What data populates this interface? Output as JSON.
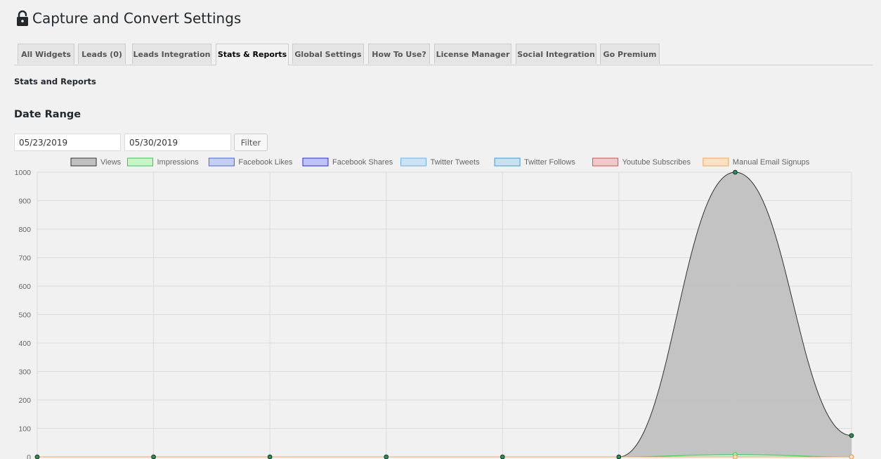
{
  "page": {
    "title": "Capture and Convert Settings",
    "title_icon": "lock-open-icon"
  },
  "tabs": [
    {
      "label": "All Widgets",
      "active": false
    },
    {
      "label": "Leads (0)",
      "active": false
    },
    {
      "label": "Leads Integration",
      "active": false
    },
    {
      "label": "Stats & Reports",
      "active": true
    },
    {
      "label": "Global Settings",
      "active": false
    },
    {
      "label": "How To Use?",
      "active": false
    },
    {
      "label": "License Manager",
      "active": false
    },
    {
      "label": "Social Integration",
      "active": false
    },
    {
      "label": "Go Premium",
      "active": false
    }
  ],
  "section": {
    "subtitle": "Stats and Reports",
    "date_range_title": "Date Range"
  },
  "filters": {
    "start_date": "05/23/2019",
    "end_date": "05/30/2019",
    "filter_label": "Filter"
  },
  "chart_data": {
    "type": "area",
    "x": [
      "",
      "",
      "",
      "",
      "",
      "",
      "",
      ""
    ],
    "ylim": [
      0,
      1000
    ],
    "yticks": [
      0,
      100,
      200,
      300,
      400,
      500,
      600,
      700,
      800,
      900,
      1000
    ],
    "grid": true,
    "legend_position": "top",
    "series": [
      {
        "name": "Views",
        "values": [
          0,
          0,
          0,
          0,
          0,
          0,
          1000,
          75
        ],
        "fill": "#c0c0c0",
        "stroke": "#333333"
      },
      {
        "name": "Impressions",
        "values": [
          0,
          0,
          0,
          0,
          0,
          0,
          8,
          0
        ],
        "fill": "#c8f5c8",
        "stroke": "#33cc55"
      },
      {
        "name": "Facebook Likes",
        "values": [
          0,
          0,
          0,
          0,
          0,
          0,
          0,
          0
        ],
        "fill": "#c4cdf2",
        "stroke": "#4a66d9"
      },
      {
        "name": "Facebook Shares",
        "values": [
          0,
          0,
          0,
          0,
          0,
          0,
          0,
          0
        ],
        "fill": "#bfc2f5",
        "stroke": "#2b2bd9"
      },
      {
        "name": "Twitter Tweets",
        "values": [
          0,
          0,
          0,
          0,
          0,
          0,
          0,
          0
        ],
        "fill": "#cde3f5",
        "stroke": "#6bb3e8"
      },
      {
        "name": "Twitter Follows",
        "values": [
          0,
          0,
          0,
          0,
          0,
          0,
          0,
          0
        ],
        "fill": "#c7e1ef",
        "stroke": "#3fa0cf"
      },
      {
        "name": "Youtube Subscribes",
        "values": [
          0,
          0,
          0,
          0,
          0,
          0,
          0,
          0
        ],
        "fill": "#eec9cc",
        "stroke": "#d9534f"
      },
      {
        "name": "Manual Email Signups",
        "values": [
          0,
          0,
          0,
          0,
          0,
          0,
          0,
          0
        ],
        "fill": "#fbe1c4",
        "stroke": "#f0a860"
      }
    ]
  }
}
